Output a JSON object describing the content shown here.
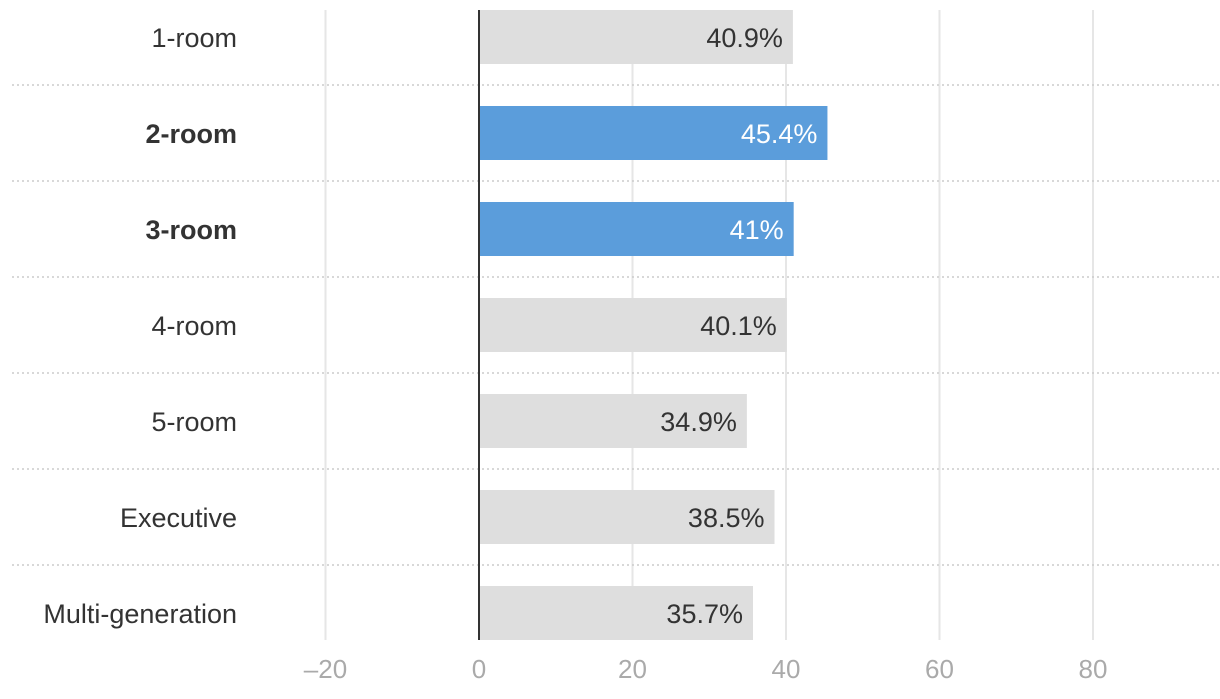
{
  "chart_data": {
    "type": "bar",
    "orientation": "horizontal",
    "title": "",
    "xlabel": "",
    "ylabel": "",
    "categories": [
      "1-room",
      "2-room",
      "3-room",
      "4-room",
      "5-room",
      "Executive",
      "Multi-generation"
    ],
    "values": [
      40.9,
      45.4,
      41,
      40.1,
      34.9,
      38.5,
      35.7
    ],
    "value_labels": [
      "40.9%",
      "45.4%",
      "41%",
      "40.1%",
      "34.9%",
      "38.5%",
      "35.7%"
    ],
    "highlighted": [
      "2-room",
      "3-room"
    ],
    "xlim": [
      -20,
      96
    ],
    "xticks": [
      -20,
      0,
      20,
      40,
      60,
      80
    ],
    "xtick_labels": [
      "–20",
      "0",
      "20",
      "40",
      "60",
      "80"
    ],
    "grid": true,
    "colors": {
      "default_bar": "#dedede",
      "highlight_bar": "#5b9ddb",
      "default_label": "#333333",
      "highlight_label": "#ffffff",
      "tick_label": "#aaaaaa",
      "grid": "#e6e6e6",
      "axis": "#333333"
    }
  }
}
